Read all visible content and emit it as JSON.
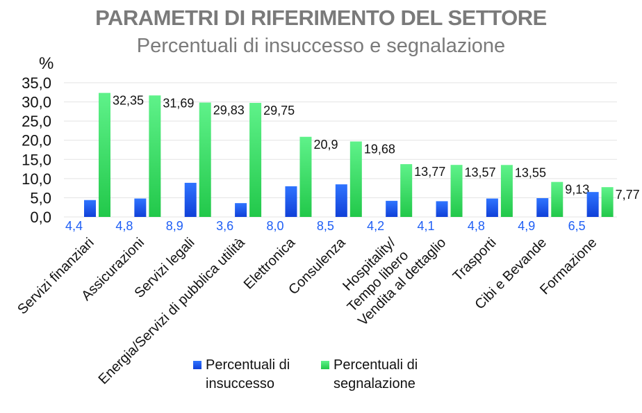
{
  "chart_data": {
    "type": "bar",
    "title": "PARAMETRI DI RIFERIMENTO DEL SETTORE",
    "subtitle": "Percentuali di insuccesso e segnalazione",
    "unit_label": "%",
    "categories": [
      "Servizi finanziari",
      "Assicurazioni",
      "Servizi legali",
      "Energia/Servizi di pubblica utilità",
      "Elettronica",
      "Consulenza",
      "Hospitality/ Tempo libero",
      "Vendita al dettaglio",
      "Trasporti",
      "Cibi e Bevande",
      "Formazione"
    ],
    "series": [
      {
        "name": "Percentuali di insuccesso",
        "color": "#1f5ff5",
        "values": [
          4.4,
          4.8,
          8.9,
          3.6,
          8.0,
          8.5,
          4.2,
          4.1,
          4.8,
          4.9,
          6.5
        ],
        "labels": [
          "4,4",
          "4,8",
          "8,9",
          "3,6",
          "8,0",
          "8,5",
          "4,2",
          "4,1",
          "4,8",
          "4,9",
          "6,5"
        ]
      },
      {
        "name": "Percentuali di segnalazione",
        "color": "#3ee06a",
        "values": [
          32.35,
          31.69,
          29.83,
          29.75,
          20.9,
          19.68,
          13.77,
          13.57,
          13.55,
          9.13,
          7.77
        ],
        "labels": [
          "32,35",
          "31,69",
          "29,83",
          "29,75",
          "20,9",
          "19,68",
          "13,77",
          "13,57",
          "13,55",
          "9,13",
          "7,77"
        ]
      }
    ],
    "ylim": [
      0,
      35
    ],
    "yticks": [
      "0,0",
      "5,0",
      "10,0",
      "15,0",
      "20,0",
      "25,0",
      "30,0",
      "35,0"
    ],
    "grid": true,
    "legend_position": "bottom"
  },
  "legend": {
    "item1": "Percentuali di insuccesso",
    "item2": "Percentuali di segnalazione"
  }
}
